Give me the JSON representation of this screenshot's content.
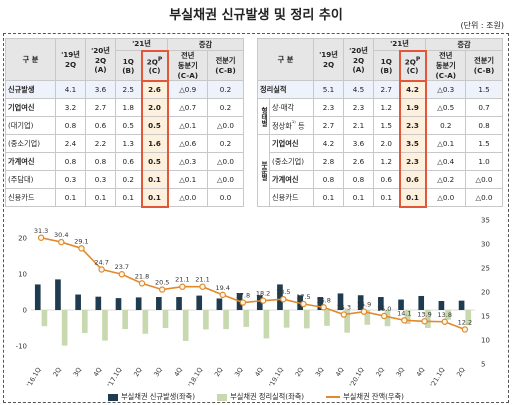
{
  "title": "부실채권 신규발생 및 정리 추이",
  "unit": "(단위 : 조원)",
  "left_table": {
    "headers": {
      "category": "구 분",
      "col1": [
        "'19년",
        "2Q"
      ],
      "col2": [
        "'20년",
        "2Q",
        "(A)"
      ],
      "year21": "'21년",
      "col3": [
        "1Q",
        "(B)"
      ],
      "col4": [
        "2Q",
        "(C)"
      ],
      "change": "증감",
      "col5": [
        "전년",
        "동분기",
        "(C-A)"
      ],
      "col6": [
        "전분기",
        "(C-B)"
      ]
    },
    "rows": [
      {
        "label": "신규발생",
        "cells": [
          "4.1",
          "3.6",
          "2.5",
          "2.6",
          "△0.9",
          "0.2"
        ],
        "bold": true,
        "hl": true
      },
      {
        "label": "기업여신",
        "cells": [
          "3.2",
          "2.7",
          "1.8",
          "2.0",
          "△0.7",
          "0.2"
        ],
        "bold": true
      },
      {
        "label": "(대기업)",
        "cells": [
          "0.8",
          "0.6",
          "0.5",
          "0.5",
          "△0.1",
          "△0.0"
        ]
      },
      {
        "label": "(중소기업)",
        "cells": [
          "2.4",
          "2.2",
          "1.3",
          "1.6",
          "△0.6",
          "0.2"
        ]
      },
      {
        "label": "가계여신",
        "cells": [
          "0.8",
          "0.8",
          "0.6",
          "0.5",
          "△0.3",
          "△0.0"
        ],
        "bold": true
      },
      {
        "label": "(주담대)",
        "cells": [
          "0.3",
          "0.3",
          "0.2",
          "0.1",
          "△0.1",
          "△0.0"
        ]
      },
      {
        "label": "신용카드",
        "cells": [
          "0.1",
          "0.1",
          "0.1",
          "0.1",
          "△0.0",
          "0.0"
        ]
      }
    ]
  },
  "right_table": {
    "headers": {
      "category": "구 분",
      "col1": [
        "'19년",
        "2Q"
      ],
      "col2": [
        "'20년",
        "2Q",
        "(A)"
      ],
      "year21": "'21년",
      "col3": [
        "1Q",
        "(B)"
      ],
      "col4": [
        "2Q",
        "(C)"
      ],
      "change": "증감",
      "col5": [
        "전년",
        "동분기",
        "(C-A)"
      ],
      "col6": [
        "전분기",
        "(C-B)"
      ]
    },
    "group1_label": "형태별",
    "group2_label": "부문별",
    "rows": [
      {
        "label": "정리실적",
        "cells": [
          "5.1",
          "4.5",
          "2.7",
          "4.2",
          "△0.3",
          "1.5"
        ],
        "bold": true,
        "hl": true
      },
      {
        "label": "상·매각",
        "cells": [
          "2.3",
          "2.3",
          "1.2",
          "1.9",
          "△0.5",
          "0.7"
        ]
      },
      {
        "label": "정상화",
        "mark": "¹⁾",
        "tail": "등",
        "cells": [
          "2.7",
          "2.1",
          "1.5",
          "2.3",
          "0.2",
          "0.8"
        ]
      },
      {
        "label": "기업여신",
        "cells": [
          "4.2",
          "3.6",
          "2.0",
          "3.5",
          "△0.1",
          "1.5"
        ],
        "bold": true
      },
      {
        "label": "(중소기업)",
        "cells": [
          "2.8",
          "2.6",
          "1.2",
          "2.3",
          "△0.4",
          "1.0"
        ]
      },
      {
        "label": "가계여신",
        "cells": [
          "0.8",
          "0.8",
          "0.6",
          "0.6",
          "△0.2",
          "△0.0"
        ],
        "bold": true
      },
      {
        "label": "신용카드",
        "cells": [
          "0.1",
          "0.1",
          "0.1",
          "0.1",
          "△0.0",
          "△0.0"
        ]
      }
    ]
  },
  "chart_data": {
    "type": "bar",
    "categories": [
      "'16.1Q",
      "2Q",
      "3Q",
      "4Q",
      "'17.1Q",
      "2Q",
      "3Q",
      "4Q",
      "'18.1Q",
      "2Q",
      "3Q",
      "4Q",
      "'19.1Q",
      "2Q",
      "3Q",
      "4Q",
      "'20.1Q",
      "2Q",
      "3Q",
      "4Q",
      "'21.1Q",
      "2Q"
    ],
    "series": [
      {
        "name": "부실채권 신규발생(좌축)",
        "type": "bar",
        "values": [
          7.1,
          8.5,
          4.3,
          3.7,
          3.3,
          3.5,
          3.6,
          3.6,
          4.0,
          3.2,
          4.7,
          4.1,
          7.1,
          4.1,
          3.6,
          4.6,
          4.1,
          3.6,
          2.9,
          3.9,
          2.5,
          2.6
        ]
      },
      {
        "name": "부실채권 정리실적(좌축)",
        "type": "bar",
        "values": [
          -4.5,
          -9.9,
          -6.4,
          -8.5,
          -5.3,
          -6.6,
          -5.0,
          -8.6,
          -5.4,
          -5.3,
          -4.7,
          -7.9,
          -4.9,
          -5.1,
          -4.4,
          -6.3,
          -4.1,
          -4.5,
          -3.9,
          -5.0,
          -2.7,
          -4.2
        ]
      },
      {
        "name": "부실채권 잔액(우축)",
        "type": "line",
        "values": [
          31.3,
          30.4,
          29.1,
          24.7,
          23.7,
          21.8,
          20.5,
          21.1,
          21.1,
          19.4,
          17.8,
          18.2,
          18.5,
          17.5,
          16.8,
          15.3,
          15.9,
          15.0,
          14.1,
          13.9,
          13.8,
          12.2
        ]
      }
    ],
    "y_left_ticks": [
      20,
      10,
      0,
      -10
    ],
    "y_left_lim": [
      -15,
      25
    ],
    "y_right_ticks": [
      35,
      30,
      25,
      20,
      15,
      10,
      5
    ],
    "y_right_lim": [
      5,
      35
    ],
    "colors": {
      "new": "#1f3b4f",
      "resolved": "#c8d9b0",
      "balance": "#e08a2c",
      "balance_fill": "#fff6ea"
    },
    "legend": [
      "부실채권 신규발생(좌축)",
      "부실채권 정리실적(좌축)",
      "부실채권 잔액(우축)"
    ]
  }
}
